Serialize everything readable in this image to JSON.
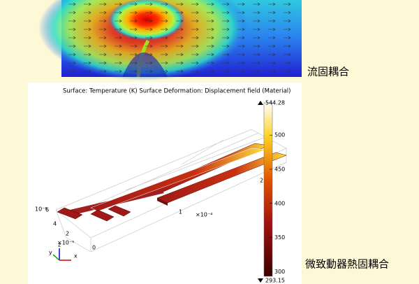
{
  "top_panel": {
    "label": "流固耦合"
  },
  "bottom_panel": {
    "caption": "Surface: Temperature (K)   Surface Deformation: Displacement field (Material)",
    "label": "微致動器熱固耦合",
    "axis_labels": [
      "10⁻⁶",
      "6",
      "4",
      "2",
      "×10⁻⁵",
      "0",
      "1",
      "×10⁻⁴",
      "2"
    ],
    "triad": [
      "z",
      "y",
      "x"
    ],
    "colorbar": {
      "max": 544.28,
      "min": 293.15,
      "ticks": [
        300,
        350,
        400,
        450,
        500
      ]
    }
  }
}
